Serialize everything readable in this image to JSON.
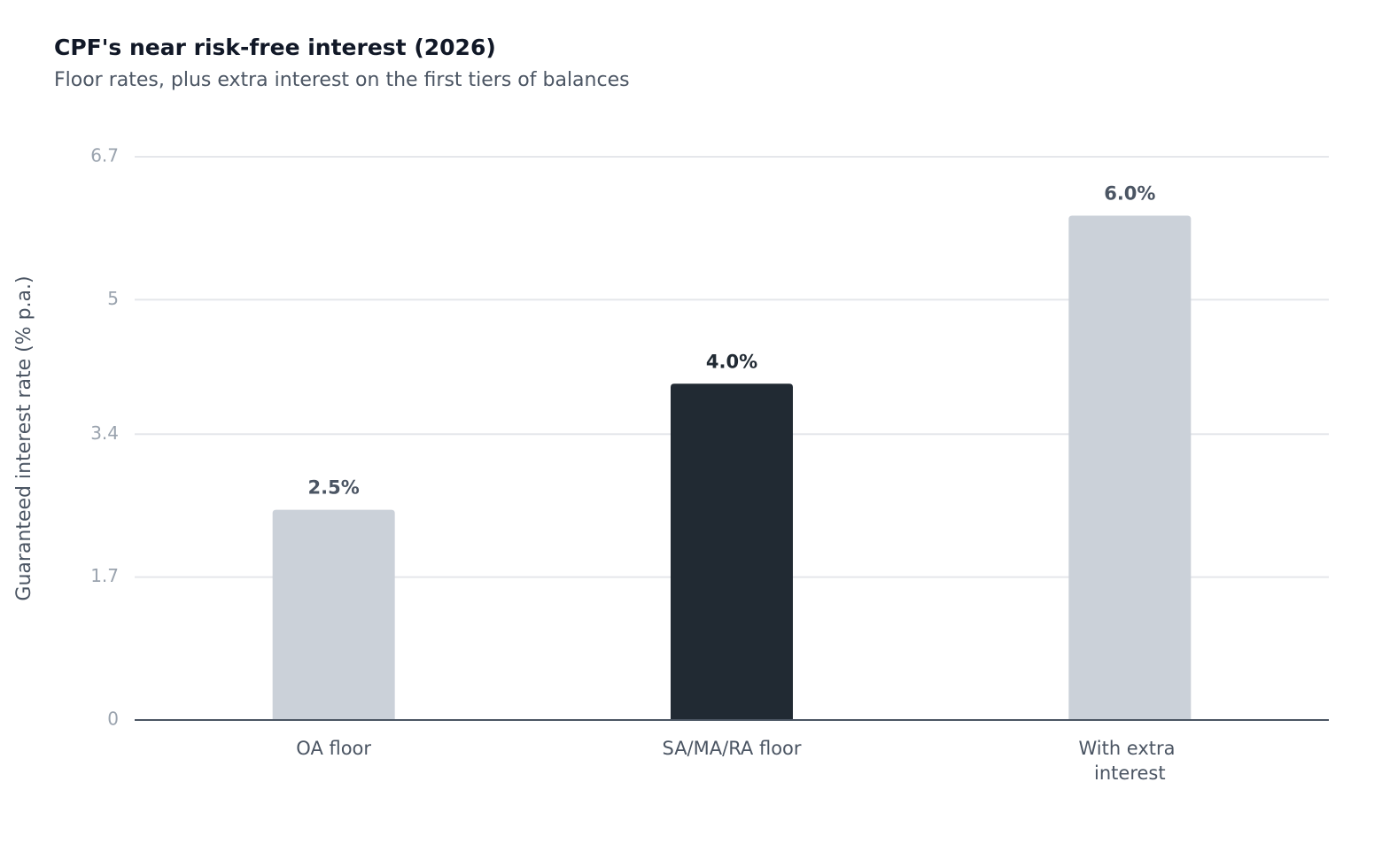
{
  "chart_data": {
    "type": "bar",
    "title": "CPF's near risk-free interest (2026)",
    "subtitle": "Floor rates, plus extra interest on the first tiers of balances",
    "y_label": "Guaranteed interest rate (% p.a.)",
    "categories": [
      "OA floor",
      "SA/MA/RA floor",
      "With extra interest"
    ],
    "values": [
      2.5,
      4.0,
      6.0
    ],
    "value_labels": [
      "2.5%",
      "4.0%",
      "6.0%"
    ],
    "colors": [
      "#cbd1d9",
      "#212a33",
      "#cbd1d9"
    ],
    "ylim": [
      0,
      6.7
    ],
    "yticks": [
      0,
      1.7,
      3.4,
      5,
      6.7
    ],
    "grid": true
  }
}
